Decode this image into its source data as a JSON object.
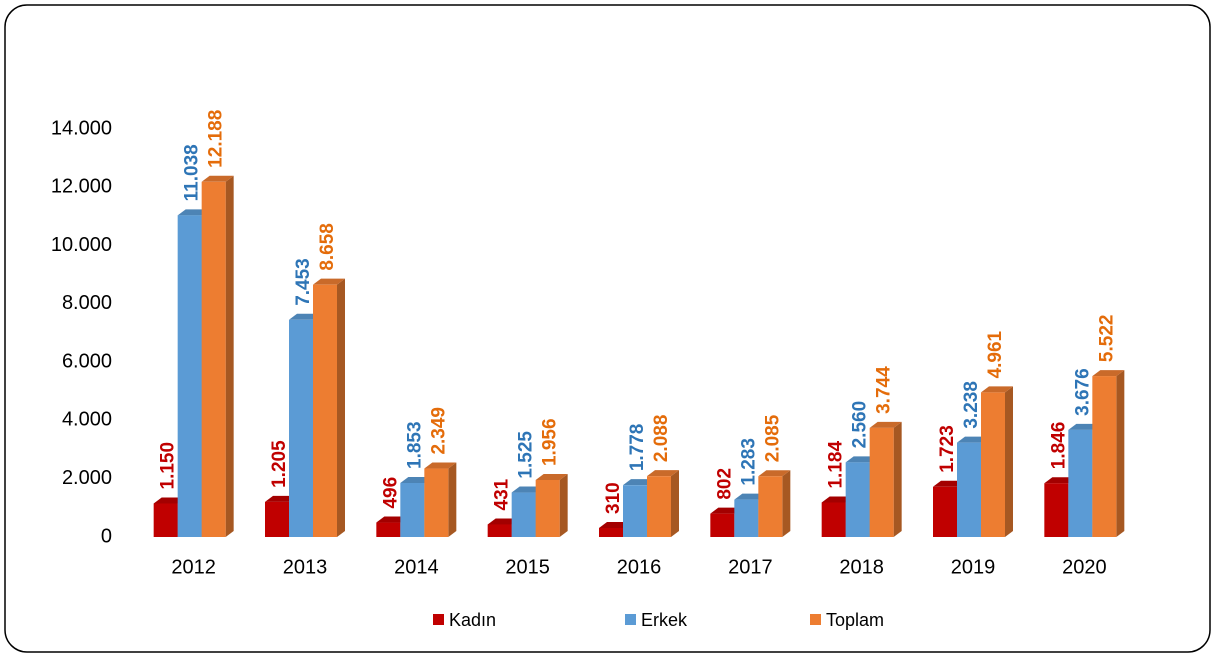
{
  "chart_data": {
    "type": "bar3d",
    "categories": [
      "2012",
      "2013",
      "2014",
      "2015",
      "2016",
      "2017",
      "2018",
      "2019",
      "2020"
    ],
    "series": [
      {
        "name": "Kadın",
        "color": "#c00000",
        "values": [
          1150,
          1205,
          496,
          431,
          310,
          802,
          1184,
          1723,
          1846
        ],
        "value_labels": [
          "1.150",
          "1.205",
          "496",
          "431",
          "310",
          "802",
          "1.184",
          "1.723",
          "1.846"
        ]
      },
      {
        "name": "Erkek",
        "color": "#5b9bd5",
        "values": [
          11038,
          7453,
          1853,
          1525,
          1778,
          1283,
          2560,
          3238,
          3676
        ],
        "value_labels": [
          "11.038",
          "7.453",
          "1.853",
          "1.525",
          "1.778",
          "1.283",
          "2.560",
          "3.238",
          "3.676"
        ]
      },
      {
        "name": "Toplam",
        "color": "#ed7d31",
        "values": [
          12188,
          8658,
          2349,
          1956,
          2088,
          2085,
          3744,
          4961,
          5522
        ],
        "value_labels": [
          "12.188",
          "8.658",
          "2.349",
          "1.956",
          "2.088",
          "2.085",
          "3.744",
          "4.961",
          "5.522"
        ]
      }
    ],
    "label_colors": [
      "#c00000",
      "#2e75b6",
      "#e46c0a"
    ],
    "ylim": [
      0,
      14000
    ],
    "yticks": [
      0,
      {
        "value": 2000,
        "label": "2.000"
      },
      {
        "value": 4000,
        "label": "4.000"
      },
      {
        "value": 6000,
        "label": "6.000"
      },
      {
        "value": 8000,
        "label": "8.000"
      },
      {
        "value": 10000,
        "label": "10.000"
      },
      {
        "value": 12000,
        "label": "12.000"
      },
      {
        "value": 14000,
        "label": "14.000"
      }
    ],
    "grid": false,
    "legend": "bottom"
  }
}
